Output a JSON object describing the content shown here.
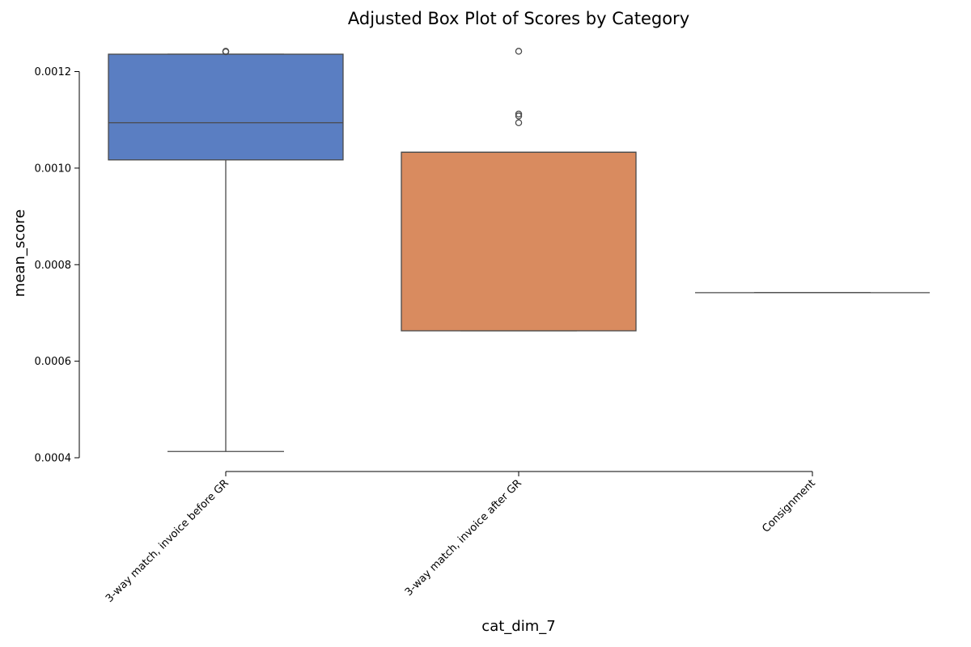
{
  "chart_data": {
    "type": "box",
    "title": "Adjusted Box Plot of Scores by Category",
    "xlabel": "cat_dim_7",
    "ylabel": "mean_score",
    "categories": [
      "3-way match, invoice before GR",
      "3-way match, invoice after GR",
      "Consignment"
    ],
    "y_ticks": [
      0.0004,
      0.0006,
      0.0008,
      0.001,
      0.0012
    ],
    "y_tick_labels": [
      "0.0004",
      "0.0006",
      "0.0008",
      "0.0010",
      "0.0012"
    ],
    "ylim": [
      0.0004,
      0.00126
    ],
    "grid": false,
    "boxes": [
      {
        "category": "3-way match, invoice before GR",
        "whisker_low": 0.000413,
        "q1": 0.001017,
        "median": 0.001094,
        "q3": 0.001236,
        "whisker_high": 0.001236,
        "outliers": [
          0.001241,
          0.001242
        ],
        "color": "#5a7ec2"
      },
      {
        "category": "3-way match, invoice after GR",
        "whisker_low": 0.000663,
        "q1": 0.000663,
        "median": 0.001033,
        "q3": 0.001033,
        "whisker_high": 0.001033,
        "outliers": [
          0.001094,
          0.001108,
          0.001112,
          0.001242
        ],
        "color": "#d98b5f"
      },
      {
        "category": "Consignment",
        "whisker_low": 0.000742,
        "q1": 0.000742,
        "median": 0.000742,
        "q3": 0.000742,
        "whisker_high": 0.000742,
        "outliers": [],
        "color": "#6aaa7a"
      }
    ]
  }
}
